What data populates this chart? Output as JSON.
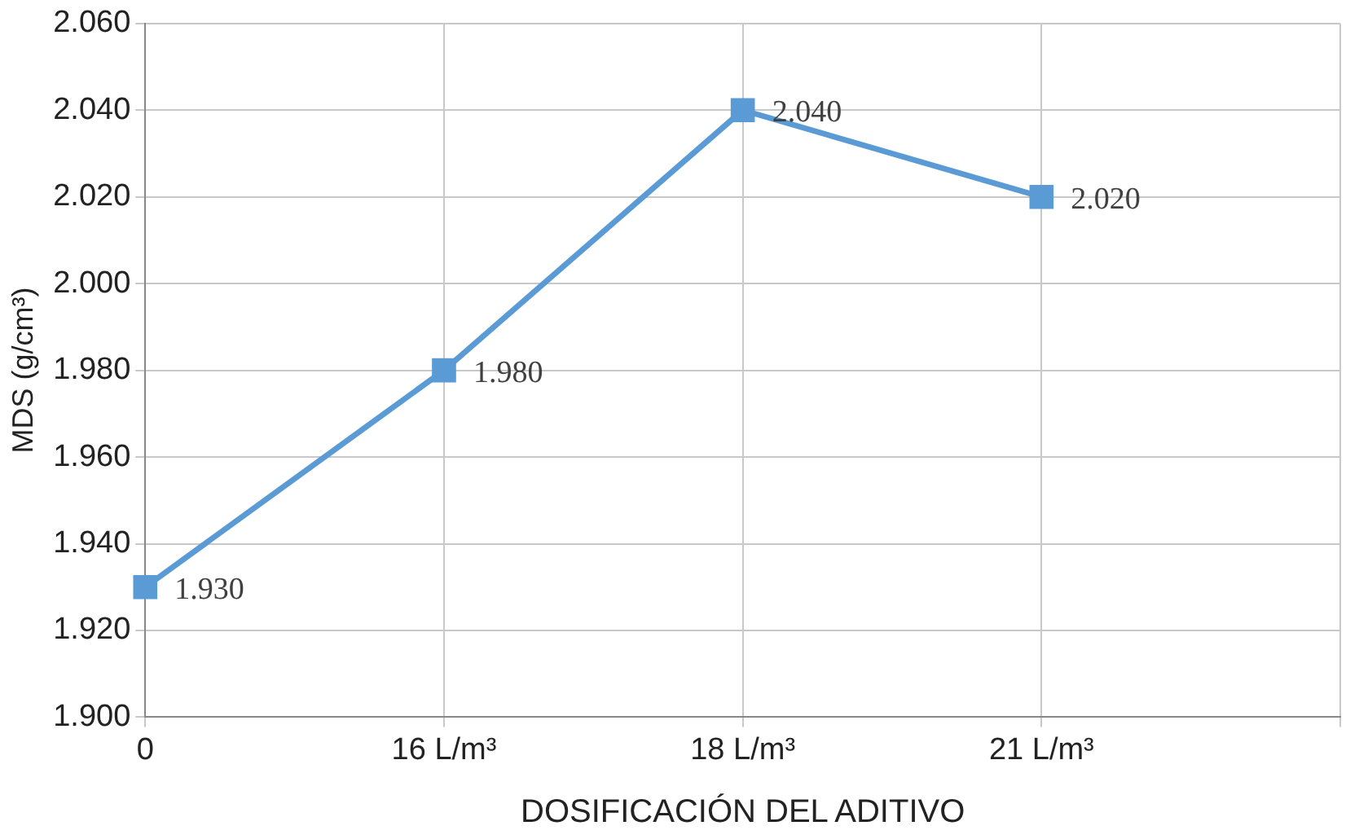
{
  "chart_data": {
    "type": "line",
    "ylabel": "MDS (g/cm³)",
    "xlabel": "DOSIFICACIÓN DEL ADITIVO",
    "categories": [
      "0",
      "16 L/m³",
      "18 L/m³",
      "21 L/m³",
      null
    ],
    "series": [
      {
        "color": "#5b9bd5",
        "values": [
          1.93,
          1.98,
          2.04,
          2.02,
          null
        ],
        "value_labels": [
          "1.930",
          "1.980",
          "2.040",
          "2.020",
          null
        ]
      }
    ],
    "ylim": [
      1.9,
      2.06
    ],
    "yticks": [
      {
        "value": 1.9,
        "label": "1.900"
      },
      {
        "value": 1.92,
        "label": "1.920"
      },
      {
        "value": 1.94,
        "label": "1.940"
      },
      {
        "value": 1.96,
        "label": "1.960"
      },
      {
        "value": 1.98,
        "label": "1.980"
      },
      {
        "value": 2.0,
        "label": "2.000"
      },
      {
        "value": 2.02,
        "label": "2.020"
      },
      {
        "value": 2.04,
        "label": "2.040"
      },
      {
        "value": 2.06,
        "label": "2.060"
      }
    ],
    "grid": true,
    "legend": false,
    "marker": "square",
    "line_style": "solid"
  }
}
